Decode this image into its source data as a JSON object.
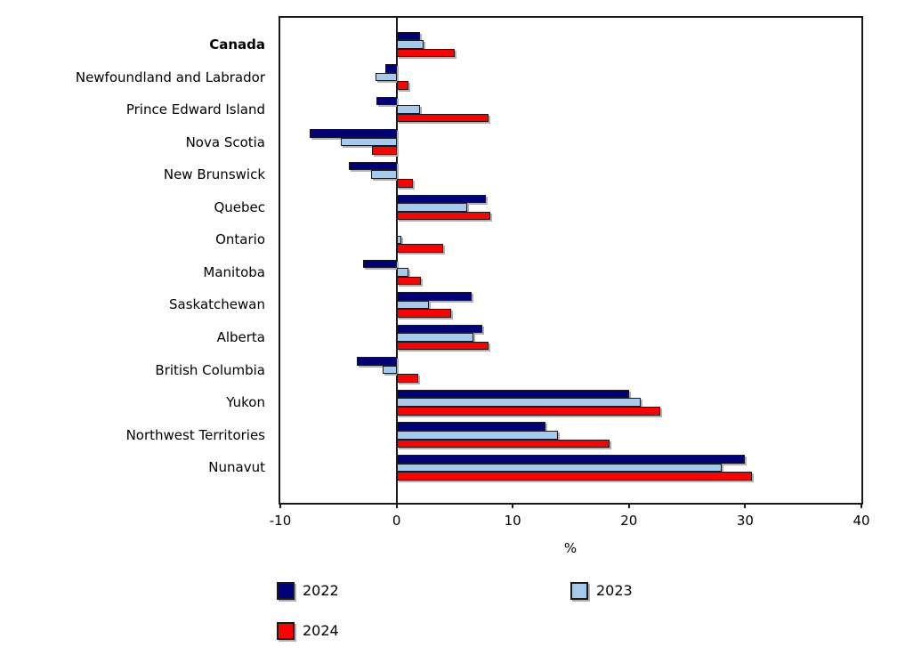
{
  "chart_data": {
    "type": "bar",
    "orientation": "horizontal",
    "title": "",
    "xlabel": "%",
    "ylabel": "",
    "xlim": [
      -10,
      40
    ],
    "xticks": [
      -10,
      0,
      10,
      20,
      30,
      40
    ],
    "grid": false,
    "legend_position": "bottom",
    "categories": [
      "Canada",
      "Newfoundland and Labrador",
      "Prince Edward Island",
      "Nova Scotia",
      "New Brunswick",
      "Quebec",
      "Ontario",
      "Manitoba",
      "Saskatchewan",
      "Alberta",
      "British Columbia",
      "Yukon",
      "Northwest Territories",
      "Nunavut"
    ],
    "emphasized_category": "Canada",
    "series": [
      {
        "name": "2022",
        "color": "#00007A",
        "values": [
          2.0,
          -1.0,
          -1.7,
          -7.5,
          -4.1,
          7.7,
          0.0,
          -2.9,
          6.5,
          7.4,
          -3.4,
          20.0,
          12.8,
          30.0
        ]
      },
      {
        "name": "2023",
        "color": "#A6CAEE",
        "values": [
          2.3,
          -1.8,
          2.0,
          -4.8,
          -2.2,
          6.1,
          0.4,
          1.0,
          2.8,
          6.6,
          -1.2,
          21.0,
          13.9,
          28.0
        ]
      },
      {
        "name": "2024",
        "color": "#FF0000",
        "values": [
          5.0,
          1.0,
          7.9,
          -2.1,
          1.4,
          8.1,
          4.0,
          2.1,
          4.7,
          7.9,
          1.9,
          22.7,
          18.3,
          30.6
        ]
      }
    ]
  },
  "colors": {
    "frame": "#1A1A1A",
    "shadow": "#B0B0B0",
    "background": "#FFFFFF"
  }
}
